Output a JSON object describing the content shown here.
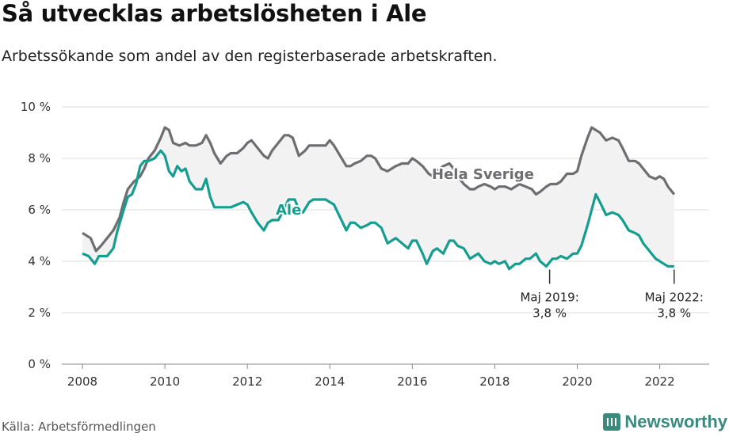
{
  "title": "Så utvecklas arbetslösheten i Ale",
  "subtitle": "Arbetssökande som andel av den registerbaserade arbetskraften.",
  "source": "Källa: Arbetsförmedlingen",
  "logo_text": "Newsworthy",
  "colors": {
    "sverige": "#6e6e72",
    "ale": "#159e8f",
    "band": "#f2f2f2",
    "grid": "#dddddd",
    "logo": "#3a8a7e"
  },
  "chart_data": {
    "type": "line",
    "title": "Så utvecklas arbetslösheten i Ale",
    "subtitle": "Arbetssökande som andel av den registerbaserade arbetskraften.",
    "xlim": [
      2007.5,
      2023.2
    ],
    "ylim": [
      0,
      10
    ],
    "x_ticks": [
      2008,
      2010,
      2012,
      2014,
      2016,
      2018,
      2020,
      2022
    ],
    "x_tick_labels": [
      "2008",
      "2010",
      "2012",
      "2014",
      "2016",
      "2018",
      "2020",
      "2022"
    ],
    "y_ticks": [
      0,
      2,
      4,
      6,
      8,
      10
    ],
    "y_tick_labels": [
      "0 %",
      "2 %",
      "4 %",
      "6 %",
      "8 %",
      "10 %"
    ],
    "grid": true,
    "series": [
      {
        "name": "Hela Sverige",
        "x": [
          2008.0,
          2008.2,
          2008.33,
          2008.45,
          2008.6,
          2008.75,
          2008.9,
          2009.0,
          2009.1,
          2009.25,
          2009.4,
          2009.5,
          2009.6,
          2009.75,
          2009.9,
          2010.0,
          2010.1,
          2010.2,
          2010.35,
          2010.5,
          2010.6,
          2010.75,
          2010.9,
          2011.0,
          2011.1,
          2011.2,
          2011.35,
          2011.5,
          2011.6,
          2011.75,
          2011.9,
          2012.0,
          2012.1,
          2012.25,
          2012.4,
          2012.5,
          2012.6,
          2012.75,
          2012.9,
          2013.0,
          2013.1,
          2013.25,
          2013.4,
          2013.5,
          2013.6,
          2013.75,
          2013.9,
          2014.0,
          2014.1,
          2014.25,
          2014.4,
          2014.5,
          2014.6,
          2014.75,
          2014.9,
          2015.0,
          2015.1,
          2015.25,
          2015.4,
          2015.5,
          2015.6,
          2015.75,
          2015.9,
          2016.0,
          2016.1,
          2016.25,
          2016.4,
          2016.5,
          2016.6,
          2016.75,
          2016.9,
          2017.0,
          2017.1,
          2017.25,
          2017.4,
          2017.5,
          2017.6,
          2017.75,
          2017.9,
          2018.0,
          2018.1,
          2018.25,
          2018.4,
          2018.5,
          2018.6,
          2018.75,
          2018.9,
          2019.0,
          2019.1,
          2019.25,
          2019.35,
          2019.5,
          2019.6,
          2019.75,
          2019.9,
          2020.0,
          2020.1,
          2020.25,
          2020.35,
          2020.45,
          2020.55,
          2020.7,
          2020.85,
          2021.0,
          2021.1,
          2021.25,
          2021.4,
          2021.5,
          2021.6,
          2021.75,
          2021.9,
          2022.0,
          2022.1,
          2022.2,
          2022.35
        ],
        "values": [
          5.1,
          4.9,
          4.4,
          4.6,
          4.9,
          5.2,
          5.7,
          6.3,
          6.8,
          7.1,
          7.3,
          7.6,
          8.0,
          8.3,
          8.8,
          9.2,
          9.1,
          8.6,
          8.5,
          8.6,
          8.5,
          8.5,
          8.6,
          8.9,
          8.6,
          8.2,
          7.8,
          8.1,
          8.2,
          8.2,
          8.4,
          8.6,
          8.7,
          8.4,
          8.1,
          8.0,
          8.3,
          8.6,
          8.9,
          8.9,
          8.8,
          8.1,
          8.3,
          8.5,
          8.5,
          8.5,
          8.5,
          8.7,
          8.5,
          8.1,
          7.7,
          7.7,
          7.8,
          7.9,
          8.1,
          8.1,
          8.0,
          7.6,
          7.5,
          7.6,
          7.7,
          7.8,
          7.8,
          8.0,
          7.9,
          7.7,
          7.4,
          7.3,
          7.5,
          7.7,
          7.8,
          7.6,
          7.3,
          7.0,
          6.8,
          6.8,
          6.9,
          7.0,
          6.9,
          6.8,
          6.9,
          6.9,
          6.8,
          6.9,
          7.0,
          6.9,
          6.8,
          6.6,
          6.7,
          6.9,
          7.0,
          7.0,
          7.1,
          7.4,
          7.4,
          7.5,
          8.1,
          8.8,
          9.2,
          9.1,
          9.0,
          8.7,
          8.8,
          8.7,
          8.4,
          7.9,
          7.9,
          7.8,
          7.6,
          7.3,
          7.2,
          7.3,
          7.2,
          6.9,
          6.6
        ]
      },
      {
        "name": "Ale",
        "x": [
          2008.0,
          2008.15,
          2008.3,
          2008.4,
          2008.5,
          2008.6,
          2008.75,
          2008.85,
          2009.0,
          2009.1,
          2009.2,
          2009.3,
          2009.4,
          2009.5,
          2009.6,
          2009.75,
          2009.9,
          2010.0,
          2010.1,
          2010.2,
          2010.3,
          2010.4,
          2010.5,
          2010.6,
          2010.75,
          2010.9,
          2011.0,
          2011.1,
          2011.2,
          2011.35,
          2011.5,
          2011.6,
          2011.75,
          2011.9,
          2012.0,
          2012.1,
          2012.25,
          2012.4,
          2012.5,
          2012.6,
          2012.75,
          2012.85,
          2013.0,
          2013.15,
          2013.25,
          2013.35,
          2013.5,
          2013.6,
          2013.75,
          2013.9,
          2014.0,
          2014.1,
          2014.25,
          2014.4,
          2014.5,
          2014.6,
          2014.75,
          2014.9,
          2015.0,
          2015.1,
          2015.25,
          2015.4,
          2015.5,
          2015.6,
          2015.75,
          2015.9,
          2016.0,
          2016.1,
          2016.25,
          2016.35,
          2016.5,
          2016.6,
          2016.75,
          2016.9,
          2017.0,
          2017.1,
          2017.25,
          2017.4,
          2017.5,
          2017.6,
          2017.75,
          2017.9,
          2018.0,
          2018.1,
          2018.25,
          2018.35,
          2018.5,
          2018.6,
          2018.75,
          2018.85,
          2019.0,
          2019.1,
          2019.25,
          2019.4,
          2019.5,
          2019.6,
          2019.75,
          2019.9,
          2020.0,
          2020.1,
          2020.25,
          2020.35,
          2020.45,
          2020.55,
          2020.7,
          2020.85,
          2021.0,
          2021.1,
          2021.25,
          2021.4,
          2021.5,
          2021.6,
          2021.75,
          2021.9,
          2022.0,
          2022.1,
          2022.2,
          2022.35
        ],
        "values": [
          4.3,
          4.2,
          3.9,
          4.2,
          4.2,
          4.2,
          4.5,
          5.2,
          6.0,
          6.5,
          6.6,
          7.0,
          7.7,
          7.9,
          7.9,
          8.0,
          8.3,
          8.1,
          7.5,
          7.3,
          7.7,
          7.5,
          7.6,
          7.1,
          6.8,
          6.8,
          7.2,
          6.5,
          6.1,
          6.1,
          6.1,
          6.1,
          6.2,
          6.3,
          6.2,
          5.9,
          5.5,
          5.2,
          5.5,
          5.6,
          5.6,
          5.9,
          6.4,
          6.4,
          6.0,
          5.9,
          6.3,
          6.4,
          6.4,
          6.4,
          6.3,
          6.2,
          5.7,
          5.2,
          5.5,
          5.5,
          5.3,
          5.4,
          5.5,
          5.5,
          5.3,
          4.7,
          4.8,
          4.9,
          4.7,
          4.5,
          4.8,
          4.8,
          4.3,
          3.9,
          4.4,
          4.5,
          4.3,
          4.8,
          4.8,
          4.6,
          4.5,
          4.1,
          4.2,
          4.3,
          4.0,
          3.9,
          4.0,
          3.9,
          4.0,
          3.7,
          3.9,
          3.9,
          4.1,
          4.1,
          4.3,
          4.0,
          3.8,
          4.1,
          4.1,
          4.2,
          4.1,
          4.3,
          4.3,
          4.6,
          5.4,
          6.0,
          6.6,
          6.3,
          5.8,
          5.9,
          5.8,
          5.6,
          5.2,
          5.1,
          5.0,
          4.7,
          4.4,
          4.1,
          4.0,
          3.9,
          3.8,
          3.8
        ]
      }
    ],
    "series_labels": {
      "sverige": "Hela Sverige",
      "ale": "Ale"
    },
    "annotations": [
      {
        "x": 2019.33,
        "y": 3.8,
        "line1": "Maj 2019:",
        "line2": "3,8 %"
      },
      {
        "x": 2022.35,
        "y": 3.8,
        "line1": "Maj 2022:",
        "line2": "3,8 %"
      }
    ]
  }
}
